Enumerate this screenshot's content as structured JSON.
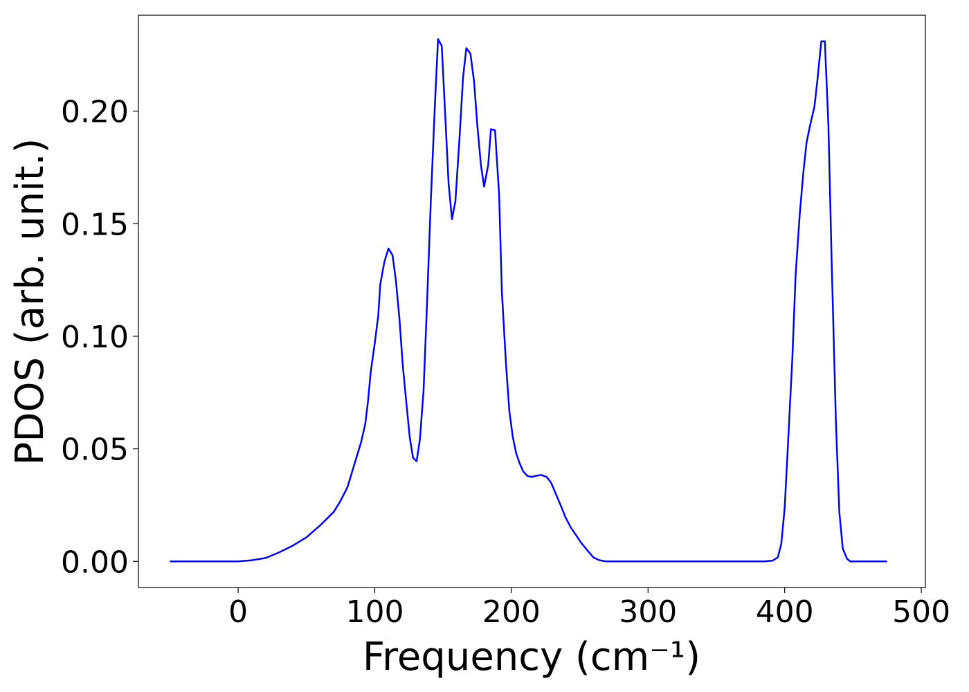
{
  "chart_data": {
    "type": "line",
    "xlabel": "Frequency (cm⁻¹)",
    "ylabel": "PDOS (arb. unit.)",
    "xlim": [
      -73,
      503
    ],
    "ylim": [
      -0.0116,
      0.2426
    ],
    "xticks": [
      0,
      100,
      200,
      300,
      400,
      500
    ],
    "yticks": [
      {
        "value": 0,
        "label": "0.00"
      },
      0.05,
      {
        "value": 0.1,
        "label": "0.10"
      },
      0.15,
      {
        "value": 0.2,
        "label": "0.20"
      }
    ],
    "grid": false,
    "series": [
      {
        "color": "#0000ff",
        "x": [
          -50,
          0,
          10,
          20,
          30,
          40,
          50,
          60,
          70,
          75,
          80,
          85,
          90,
          93,
          95,
          97,
          100,
          102.5,
          104,
          107,
          110,
          113,
          115.4,
          118,
          120.5,
          123,
          125.6,
          128,
          130.6,
          133,
          135.7,
          138,
          141,
          144,
          146.3,
          149,
          151.4,
          154,
          156.5,
          159,
          162,
          164.6,
          167,
          170,
          172.7,
          175,
          177.7,
          180,
          183,
          185,
          188,
          191,
          193,
          196,
          198.5,
          201,
          203.5,
          206,
          208.6,
          211.6,
          214.7,
          218,
          221.8,
          225.8,
          229,
          232,
          236,
          239.5,
          243.5,
          247.6,
          251,
          256,
          260,
          264,
          269,
          300,
          350,
          385,
          391,
          395,
          397.5,
          400,
          402.5,
          405.6,
          408,
          411,
          413.7,
          416,
          418.7,
          421.8,
          424,
          426.8,
          429.4,
          432,
          434.4,
          437.5,
          440,
          442.5,
          445.6,
          448,
          460,
          475
        ],
        "values": [
          0,
          0,
          0.0005,
          0.0015,
          0.004,
          0.007,
          0.0107,
          0.016,
          0.022,
          0.027,
          0.033,
          0.043,
          0.053,
          0.061,
          0.071,
          0.084,
          0.097,
          0.109,
          0.123,
          0.133,
          0.139,
          0.136,
          0.125,
          0.108,
          0.087,
          0.071,
          0.055,
          0.046,
          0.0445,
          0.054,
          0.076,
          0.111,
          0.16,
          0.203,
          0.232,
          0.229,
          0.2,
          0.168,
          0.152,
          0.16,
          0.188,
          0.215,
          0.228,
          0.2255,
          0.213,
          0.194,
          0.176,
          0.1665,
          0.176,
          0.192,
          0.1915,
          0.163,
          0.12,
          0.088,
          0.0667,
          0.0553,
          0.048,
          0.0436,
          0.04,
          0.038,
          0.0375,
          0.038,
          0.0384,
          0.0375,
          0.035,
          0.0307,
          0.025,
          0.0197,
          0.015,
          0.0114,
          0.0083,
          0.0046,
          0.0018,
          0.0006,
          0,
          0,
          0,
          0,
          0.0003,
          0.0018,
          0.0077,
          0.0237,
          0.053,
          0.09,
          0.127,
          0.154,
          0.173,
          0.186,
          0.194,
          0.202,
          0.214,
          0.231,
          0.231,
          0.194,
          0.133,
          0.062,
          0.022,
          0.0058,
          0.0012,
          0,
          0,
          0
        ]
      }
    ]
  }
}
